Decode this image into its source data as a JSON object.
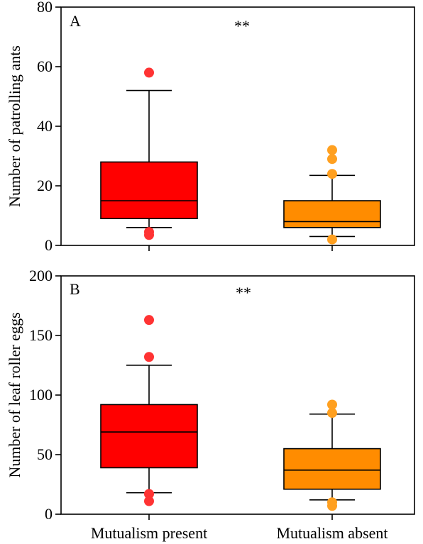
{
  "chart_data": [
    {
      "type": "boxplot",
      "panel_label": "A",
      "significance": "**",
      "xlabel": "",
      "ylabel": "Number of patrolling ants",
      "ylim": [
        0,
        80
      ],
      "yticks": [
        0,
        20,
        40,
        60,
        80
      ],
      "categories": [
        "Mutualism present",
        "Mutualism absent"
      ],
      "boxes": [
        {
          "q1": 9,
          "median": 15,
          "q3": 28,
          "whisker_low": 6,
          "whisker_high": 52,
          "outliers": [
            58,
            4.5,
            3.5
          ],
          "color": "#ff0000"
        },
        {
          "q1": 6,
          "median": 8,
          "q3": 15,
          "whisker_low": 3,
          "whisker_high": 23.5,
          "outliers": [
            32,
            29,
            24,
            2
          ],
          "color": "#ff8c00"
        }
      ]
    },
    {
      "type": "boxplot",
      "panel_label": "B",
      "significance": "**",
      "xlabel": "",
      "ylabel": "Number of leaf roller eggs",
      "ylim": [
        0,
        200
      ],
      "yticks": [
        0,
        50,
        100,
        150,
        200
      ],
      "categories": [
        "Mutualism present",
        "Mutualism absent"
      ],
      "boxes": [
        {
          "q1": 39,
          "median": 69,
          "q3": 92,
          "whisker_low": 18,
          "whisker_high": 125,
          "outliers": [
            163,
            132,
            17,
            11
          ],
          "color": "#ff0000"
        },
        {
          "q1": 21,
          "median": 37,
          "q3": 55,
          "whisker_low": 12,
          "whisker_high": 84,
          "outliers": [
            92,
            85,
            10,
            7
          ],
          "color": "#ff8c00"
        }
      ]
    }
  ],
  "outlier_colors": [
    "#ff3333",
    "#ffa020"
  ]
}
